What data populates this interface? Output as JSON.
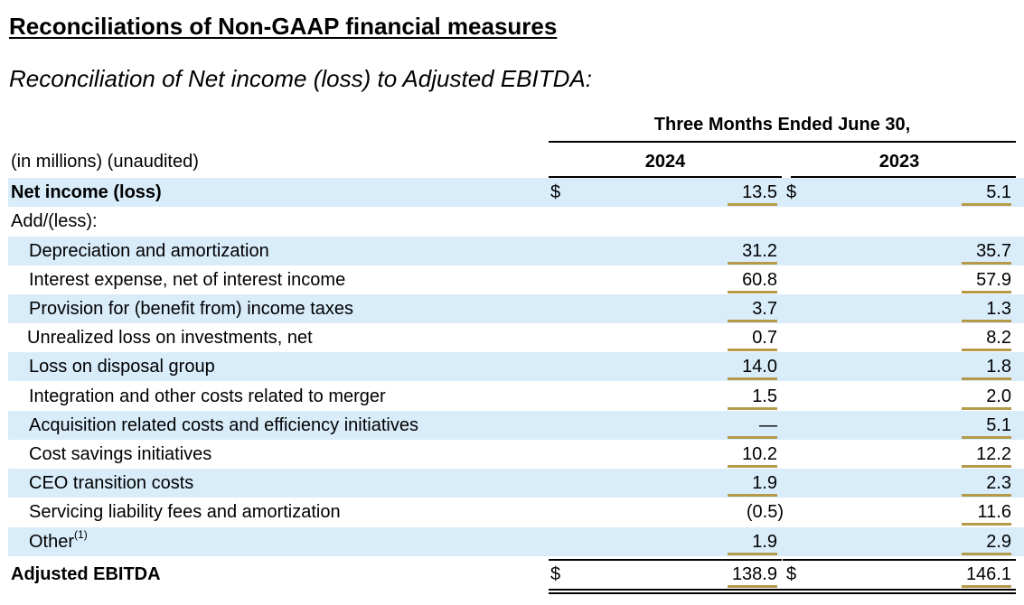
{
  "title": "Reconciliations of Non-GAAP financial measures",
  "subtitle": "Reconciliation of Net income (loss) to Adjusted EBITDA:",
  "period_header": "Three Months Ended June 30,",
  "units_label": "(in millions) (unaudited)",
  "years": [
    "2024",
    "2023"
  ],
  "currency_symbol": "$",
  "rows": [
    {
      "label": "Net income (loss)",
      "v2024": "13.5",
      "v2023": "5.1"
    },
    {
      "label": "Add/(less):",
      "v2024": "",
      "v2023": ""
    },
    {
      "label": "Depreciation and amortization",
      "v2024": "31.2",
      "v2023": "35.7"
    },
    {
      "label": "Interest expense, net of interest income",
      "v2024": "60.8",
      "v2023": "57.9"
    },
    {
      "label": "Provision for (benefit from) income taxes",
      "v2024": "3.7",
      "v2023": "1.3"
    },
    {
      "label": "Unrealized loss on investments, net",
      "v2024": "0.7",
      "v2023": "8.2"
    },
    {
      "label": "Loss on disposal group",
      "v2024": "14.0",
      "v2023": "1.8"
    },
    {
      "label": "Integration and other costs related to merger",
      "v2024": "1.5",
      "v2023": "2.0"
    },
    {
      "label": "Acquisition related costs and efficiency initiatives",
      "v2024": "—",
      "v2023": "5.1"
    },
    {
      "label": "Cost savings initiatives",
      "v2024": "10.2",
      "v2023": "12.2"
    },
    {
      "label": "CEO transition costs",
      "v2024": "1.9",
      "v2023": "2.3"
    },
    {
      "label": "Servicing liability fees and amortization",
      "v2024": "(0.5)",
      "v2023": "11.6"
    },
    {
      "label": "Other",
      "footnote": "(1)",
      "v2024": "1.9",
      "v2023": "2.9"
    },
    {
      "label": "Adjusted EBITDA",
      "v2024": "138.9",
      "v2023": "146.1"
    }
  ]
}
